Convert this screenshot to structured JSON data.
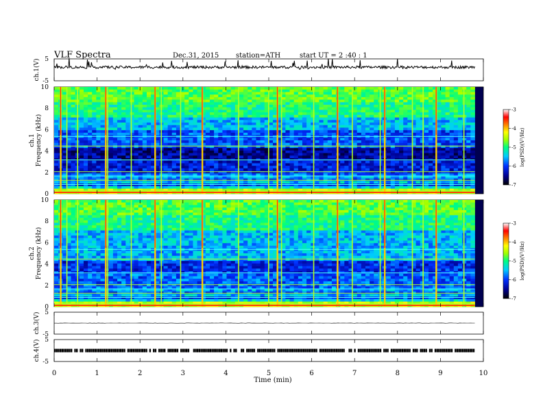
{
  "header": {
    "title": "VLF  Spectra",
    "date": "Dec.31, 2015",
    "station": "station=ATH",
    "start": "start  UT  =   2  :40 : 1"
  },
  "chart_data": [
    {
      "type": "line",
      "panel": "ch1-waveform",
      "ylabel": "ch.1(V)",
      "yticks": [
        "5",
        "-5"
      ],
      "ylim": [
        -5,
        5
      ],
      "x_range_min": [
        0,
        9.8
      ],
      "approx_level_v": 1.2,
      "grid": false
    },
    {
      "type": "heatmap",
      "panel": "ch1-spectrogram",
      "ylabel": "ch.1 Frequency (kHz)",
      "ylim": [
        0,
        10
      ],
      "yticks": [
        "0",
        "2",
        "4",
        "6",
        "8",
        "10"
      ],
      "x_range_min": [
        0,
        9.8
      ],
      "colorbar": {
        "label": "log(PSD)(V²/Hz)",
        "range": [
          -7,
          -3
        ],
        "ticks": [
          "-3",
          "-4",
          "-5",
          "-6",
          "-7"
        ]
      },
      "burst_times_min": [
        0.15,
        0.3,
        0.55,
        1.2,
        1.25,
        1.8,
        2.35,
        2.5,
        2.95,
        3.45,
        4.3,
        5.0,
        5.2,
        5.3,
        6.05,
        6.6,
        6.95,
        7.6,
        7.7,
        8.35,
        8.6,
        8.9,
        9.55
      ],
      "grid": false
    },
    {
      "type": "heatmap",
      "panel": "ch2-spectrogram",
      "ylabel": "ch.2 Frequency (kHz)",
      "ylim": [
        0,
        10
      ],
      "yticks": [
        "0",
        "2",
        "4",
        "6",
        "8",
        "10"
      ],
      "x_range_min": [
        0,
        9.8
      ],
      "colorbar": {
        "label": "log(PSD)(V²/Hz)",
        "range": [
          -7,
          -3
        ],
        "ticks": [
          "-3",
          "-4",
          "-5",
          "-6",
          "-7"
        ]
      },
      "burst_times_min": [
        0.15,
        0.3,
        0.55,
        1.2,
        1.25,
        1.8,
        2.35,
        2.5,
        2.95,
        3.45,
        4.3,
        5.0,
        5.2,
        5.3,
        6.05,
        6.6,
        6.95,
        7.6,
        7.7,
        8.35,
        8.6,
        8.9,
        9.55
      ],
      "grid": false
    },
    {
      "type": "line",
      "panel": "ch3-waveform",
      "ylabel": "ch.3(V)",
      "yticks": [
        "5",
        "-5"
      ],
      "ylim": [
        -5,
        5
      ],
      "x_range_min": [
        0,
        9.8
      ],
      "approx_level_v": 0,
      "grid": false
    },
    {
      "type": "line",
      "panel": "ch4-waveform",
      "ylabel": "ch.4(V)",
      "yticks": [
        "5",
        "-5"
      ],
      "ylim": [
        -5,
        5
      ],
      "x_range_min": [
        0,
        9.8
      ],
      "approx_level_v": 0,
      "grid": false
    }
  ],
  "xaxis": {
    "label": "Time  (min)",
    "ticks": [
      "0",
      "1",
      "2",
      "3",
      "4",
      "5",
      "6",
      "7",
      "8",
      "9",
      "10"
    ],
    "xlim": [
      0,
      10
    ]
  },
  "colors": {
    "colormap": [
      "#000000",
      "#000090",
      "#0030ff",
      "#00ccff",
      "#00ff7f",
      "#a0ff00",
      "#ffff00",
      "#ff8000",
      "#ff0000",
      "#ffffff"
    ]
  }
}
